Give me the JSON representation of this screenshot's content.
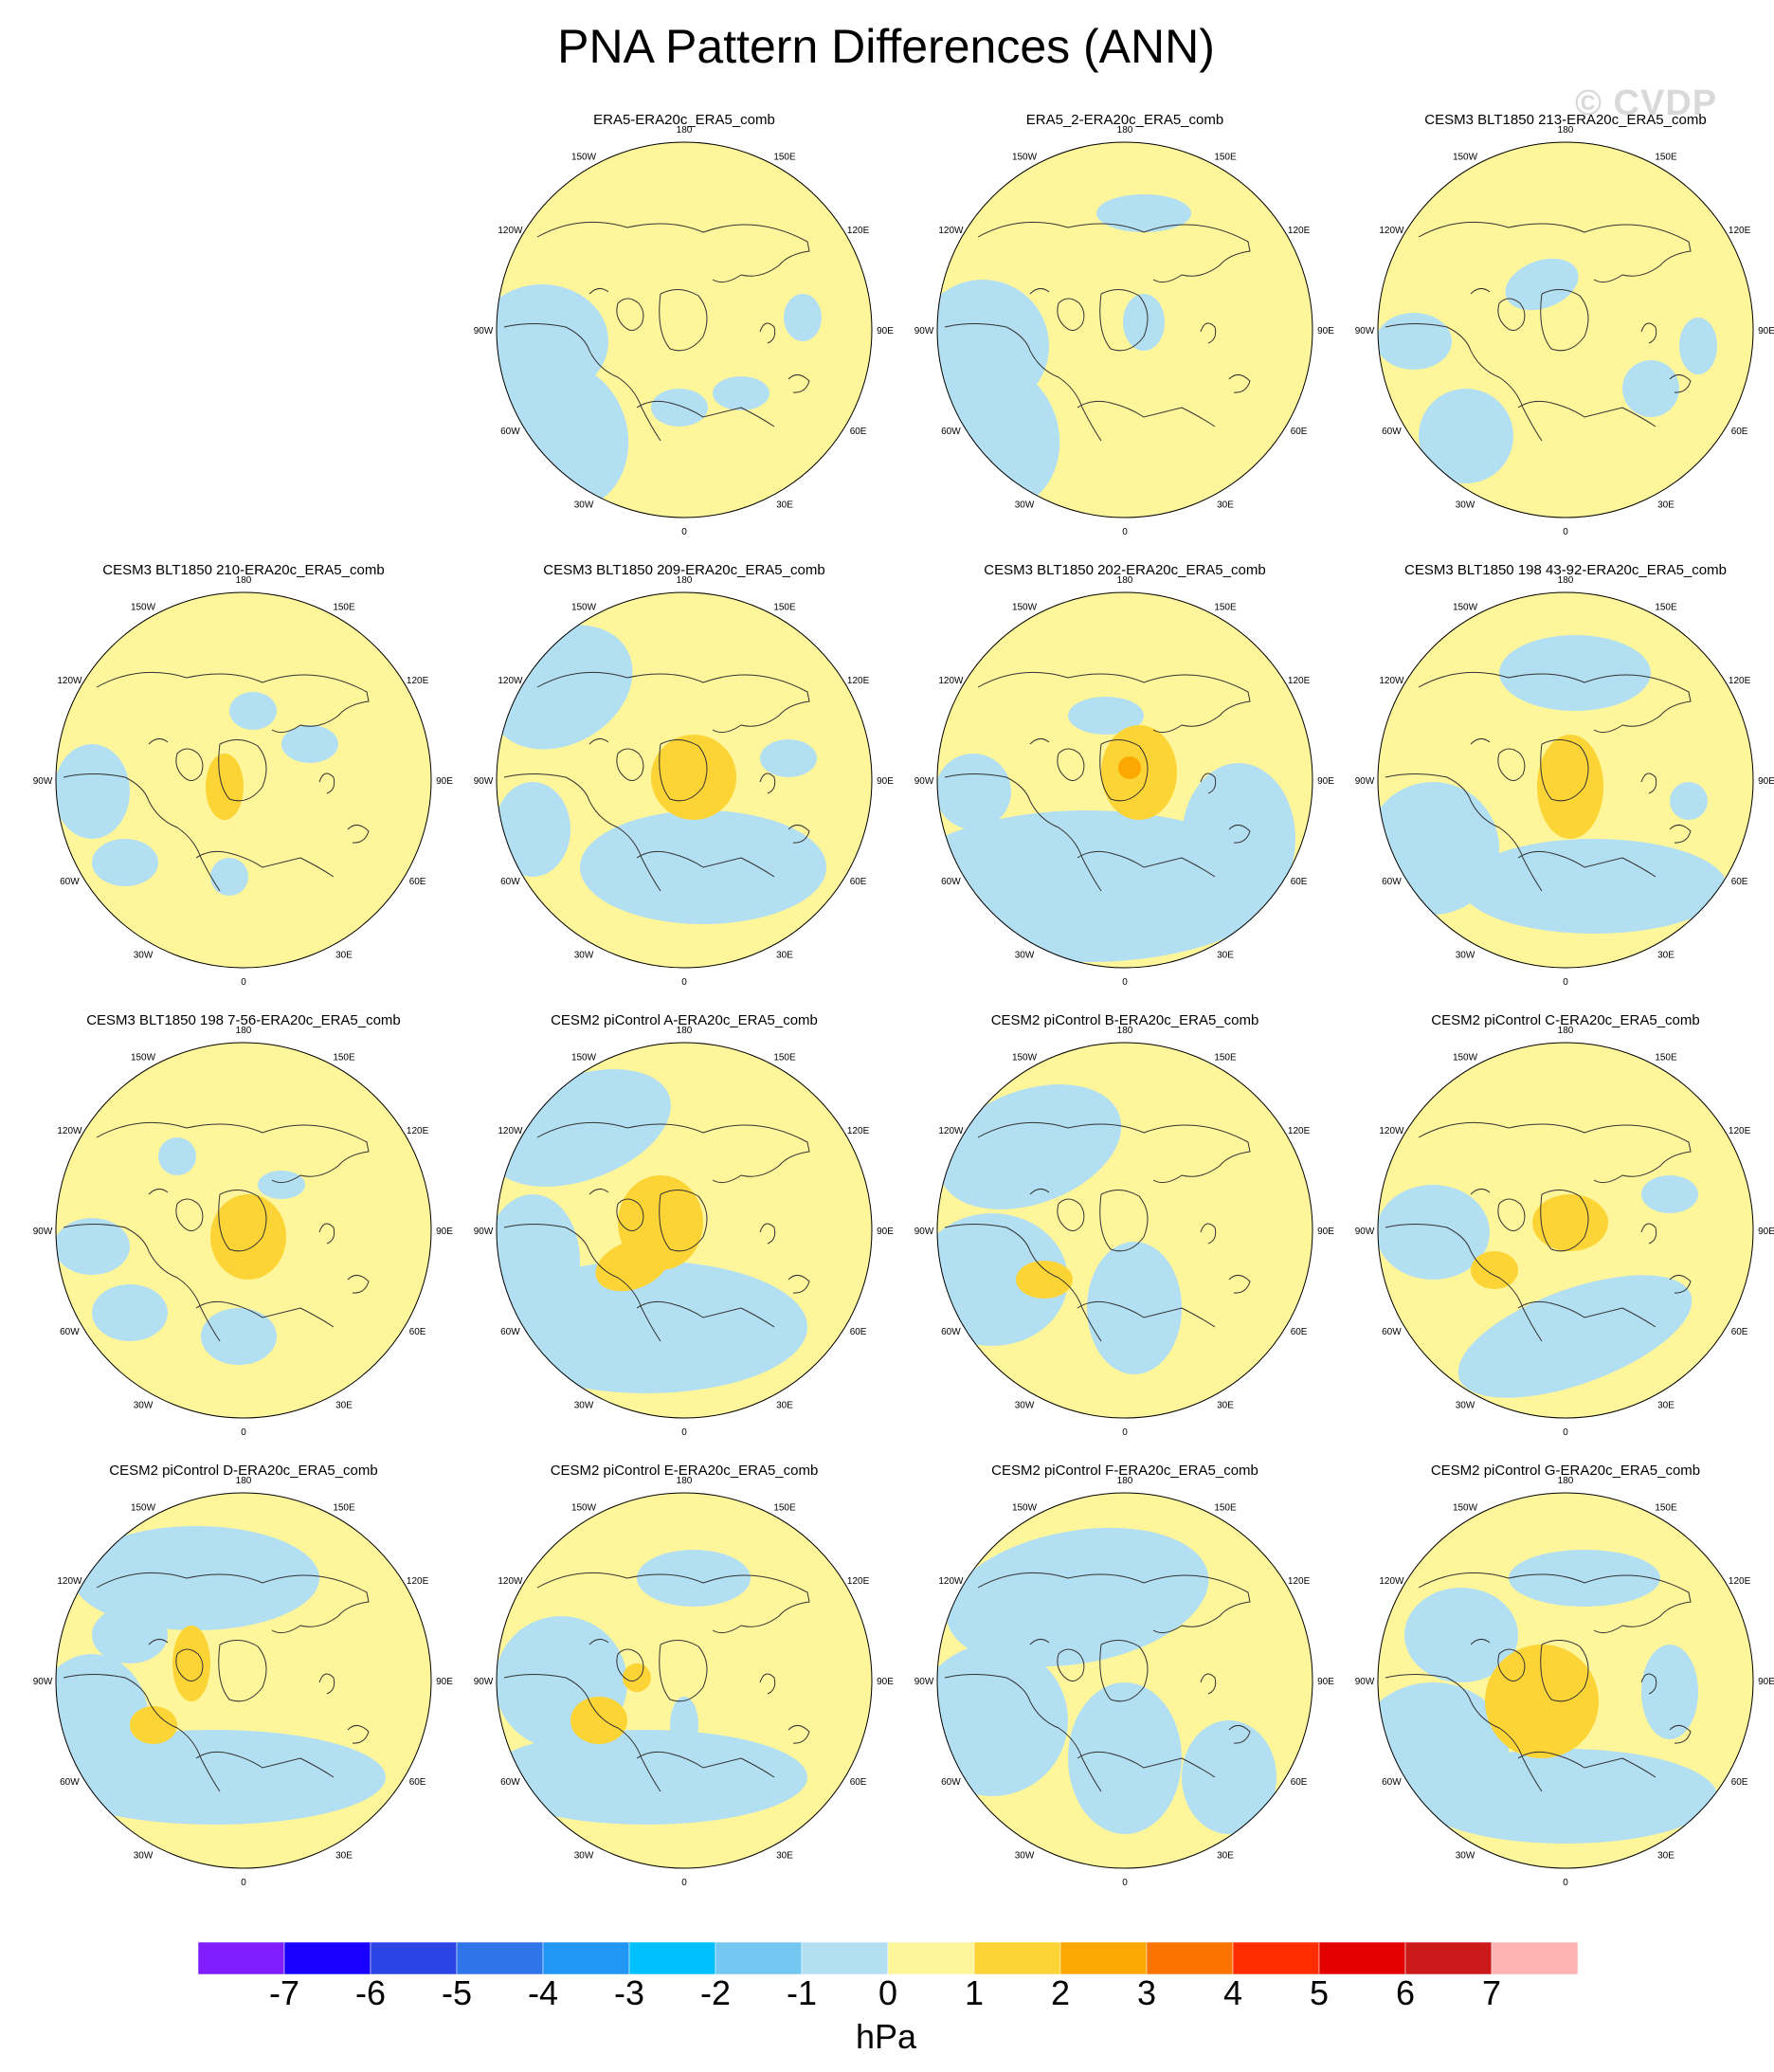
{
  "figure": {
    "title": "PNA Pattern Differences (ANN)",
    "watermark": "© CVDP",
    "units": "hPa"
  },
  "projection": {
    "type": "polar-stereographic",
    "hemisphere": "north",
    "longitude_labels": [
      "180",
      "150E",
      "120E",
      "90E",
      "60E",
      "30E",
      "0",
      "30W",
      "60W",
      "90W",
      "120W",
      "150W"
    ]
  },
  "colors": {
    "land_outline": "#333333",
    "ocean_positive": "#fff59a",
    "ocean_negative": "#b3dff2",
    "level_1_2": "#fdd435",
    "level_2_3": "#fca800"
  },
  "colorbar": {
    "tick_labels": [
      "-7",
      "-6",
      "-5",
      "-4",
      "-3",
      "-2",
      "-1",
      "0",
      "1",
      "2",
      "3",
      "4",
      "5",
      "6",
      "7"
    ],
    "colors": [
      "#7f1dff",
      "#1a00ff",
      "#2b44e6",
      "#2f74e8",
      "#2196f3",
      "#00c0ff",
      "#73c7f1",
      "#b3dff2",
      "#fff59a",
      "#fdd435",
      "#fca800",
      "#fc7300",
      "#ff2d00",
      "#e50000",
      "#cc1a1a",
      "#ffb3b3"
    ]
  },
  "panels": [
    {
      "title": "ERA5-ERA20c_ERA5_comb",
      "row": 0,
      "col": 1
    },
    {
      "title": "ERA5_2-ERA20c_ERA5_comb",
      "row": 0,
      "col": 2
    },
    {
      "title": "CESM3 BLT1850 213-ERA20c_ERA5_comb",
      "row": 0,
      "col": 3
    },
    {
      "title": "CESM3 BLT1850 210-ERA20c_ERA5_comb",
      "row": 1,
      "col": 0
    },
    {
      "title": "CESM3 BLT1850 209-ERA20c_ERA5_comb",
      "row": 1,
      "col": 1
    },
    {
      "title": "CESM3 BLT1850 202-ERA20c_ERA5_comb",
      "row": 1,
      "col": 2
    },
    {
      "title": "CESM3 BLT1850 198 43-92-ERA20c_ERA5_comb",
      "row": 1,
      "col": 3
    },
    {
      "title": "CESM3 BLT1850 198 7-56-ERA20c_ERA5_comb",
      "row": 2,
      "col": 0
    },
    {
      "title": "CESM2 piControl A-ERA20c_ERA5_comb",
      "row": 2,
      "col": 1
    },
    {
      "title": "CESM2 piControl B-ERA20c_ERA5_comb",
      "row": 2,
      "col": 2
    },
    {
      "title": "CESM2 piControl C-ERA20c_ERA5_comb",
      "row": 2,
      "col": 3
    },
    {
      "title": "CESM2 piControl D-ERA20c_ERA5_comb",
      "row": 3,
      "col": 0
    },
    {
      "title": "CESM2 piControl E-ERA20c_ERA5_comb",
      "row": 3,
      "col": 1
    },
    {
      "title": "CESM2 piControl F-ERA20c_ERA5_comb",
      "row": 3,
      "col": 2
    },
    {
      "title": "CESM2 piControl G-ERA20c_ERA5_comb",
      "row": 3,
      "col": 3
    }
  ]
}
